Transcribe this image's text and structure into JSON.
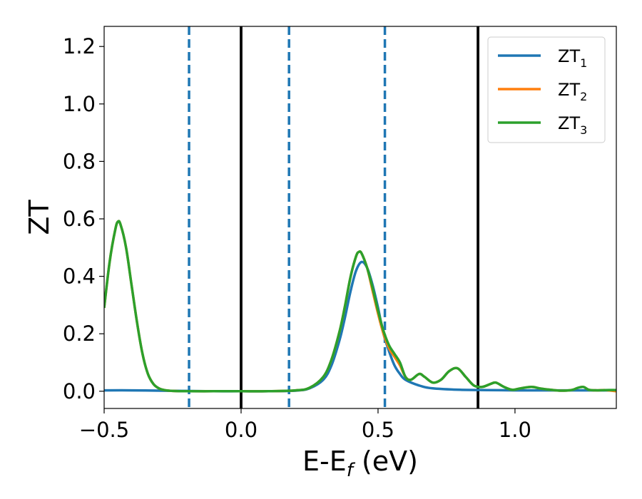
{
  "chart_data": {
    "type": "line",
    "xlabel": {
      "main": "E-E",
      "sub": "f",
      "tail": " (eV)"
    },
    "ylabel": "ZT",
    "xlim": [
      -0.5,
      1.37
    ],
    "ylim": [
      -0.06,
      1.27
    ],
    "xticks": [
      {
        "value": -0.5,
        "label": "−0.5"
      },
      {
        "value": 0.0,
        "label": "0.0"
      },
      {
        "value": 0.5,
        "label": "0.5"
      },
      {
        "value": 1.0,
        "label": "1.0"
      }
    ],
    "yticks": [
      {
        "value": 0.0,
        "label": "0.0"
      },
      {
        "value": 0.2,
        "label": "0.2"
      },
      {
        "value": 0.4,
        "label": "0.4"
      },
      {
        "value": 0.6,
        "label": "0.6"
      },
      {
        "value": 0.8,
        "label": "0.8"
      },
      {
        "value": 1.0,
        "label": "1.0"
      },
      {
        "value": 1.2,
        "label": "1.2"
      }
    ],
    "grid": false,
    "legend_position": "top-right",
    "vlines": [
      {
        "x": -0.19,
        "style": "dashed",
        "color": "#1f77b4"
      },
      {
        "x": 0.0,
        "style": "solid",
        "color": "#000000"
      },
      {
        "x": 0.175,
        "style": "dashed",
        "color": "#1f77b4"
      },
      {
        "x": 0.525,
        "style": "dashed",
        "color": "#1f77b4"
      },
      {
        "x": 0.865,
        "style": "solid",
        "color": "#000000"
      }
    ],
    "series": [
      {
        "name": "ZT",
        "sub": "1",
        "color": "#1f77b4",
        "x": [
          -0.5,
          -0.4,
          -0.3,
          -0.2,
          -0.1,
          0.0,
          0.1,
          0.2,
          0.25,
          0.3,
          0.33,
          0.36,
          0.38,
          0.4,
          0.42,
          0.44,
          0.46,
          0.48,
          0.5,
          0.52,
          0.54,
          0.56,
          0.58,
          0.6,
          0.65,
          0.7,
          0.8,
          0.9,
          1.0,
          1.1,
          1.2,
          1.3,
          1.37
        ],
        "y": [
          0.003,
          0.003,
          0.002,
          0.001,
          0.0,
          0.0,
          0.0,
          0.002,
          0.01,
          0.04,
          0.09,
          0.18,
          0.26,
          0.35,
          0.42,
          0.45,
          0.43,
          0.37,
          0.29,
          0.2,
          0.14,
          0.09,
          0.06,
          0.04,
          0.02,
          0.01,
          0.005,
          0.004,
          0.003,
          0.003,
          0.003,
          0.003,
          0.003
        ]
      },
      {
        "name": "ZT",
        "sub": "2",
        "color": "#ff7f0e",
        "x": [
          -0.5,
          -0.48,
          -0.46,
          -0.45,
          -0.44,
          -0.42,
          -0.4,
          -0.38,
          -0.36,
          -0.34,
          -0.32,
          -0.3,
          -0.28,
          -0.25,
          -0.2,
          -0.1,
          0.0,
          0.1,
          0.2,
          0.25,
          0.3,
          0.33,
          0.36,
          0.38,
          0.4,
          0.42,
          0.43,
          0.44,
          0.46,
          0.48,
          0.5,
          0.52,
          0.54,
          0.56,
          0.58,
          0.6,
          0.62,
          0.65,
          0.67,
          0.7,
          0.73,
          0.76,
          0.79,
          0.82,
          0.85,
          0.88,
          0.91,
          0.93,
          0.96,
          0.99,
          1.02,
          1.06,
          1.09,
          1.12,
          1.15,
          1.18,
          1.21,
          1.23,
          1.25,
          1.27,
          1.3,
          1.33,
          1.37
        ],
        "y": [
          0.29,
          0.45,
          0.56,
          0.59,
          0.58,
          0.5,
          0.37,
          0.24,
          0.13,
          0.06,
          0.025,
          0.01,
          0.004,
          0.001,
          0.0,
          0.0,
          0.0,
          0.0,
          0.003,
          0.012,
          0.05,
          0.11,
          0.21,
          0.3,
          0.4,
          0.47,
          0.485,
          0.48,
          0.43,
          0.35,
          0.27,
          0.2,
          0.15,
          0.12,
          0.09,
          0.05,
          0.04,
          0.06,
          0.05,
          0.03,
          0.04,
          0.07,
          0.08,
          0.05,
          0.02,
          0.015,
          0.025,
          0.03,
          0.015,
          0.005,
          0.01,
          0.015,
          0.01,
          0.006,
          0.003,
          0.002,
          0.005,
          0.012,
          0.015,
          0.005,
          0.003,
          0.004,
          0.0
        ]
      },
      {
        "name": "ZT",
        "sub": "3",
        "color": "#2ca02c",
        "x": [
          -0.5,
          -0.48,
          -0.46,
          -0.45,
          -0.44,
          -0.42,
          -0.4,
          -0.38,
          -0.36,
          -0.34,
          -0.32,
          -0.3,
          -0.28,
          -0.25,
          -0.2,
          -0.1,
          0.0,
          0.1,
          0.2,
          0.25,
          0.3,
          0.33,
          0.36,
          0.38,
          0.4,
          0.42,
          0.43,
          0.44,
          0.46,
          0.48,
          0.5,
          0.52,
          0.54,
          0.56,
          0.58,
          0.6,
          0.62,
          0.65,
          0.67,
          0.7,
          0.73,
          0.76,
          0.79,
          0.82,
          0.85,
          0.88,
          0.91,
          0.93,
          0.96,
          0.99,
          1.02,
          1.06,
          1.09,
          1.12,
          1.15,
          1.18,
          1.21,
          1.23,
          1.25,
          1.27,
          1.3,
          1.33,
          1.37
        ],
        "y": [
          0.29,
          0.45,
          0.56,
          0.59,
          0.58,
          0.5,
          0.37,
          0.24,
          0.13,
          0.06,
          0.025,
          0.01,
          0.004,
          0.001,
          0.0,
          0.0,
          0.0,
          0.0,
          0.003,
          0.012,
          0.05,
          0.11,
          0.21,
          0.3,
          0.4,
          0.47,
          0.485,
          0.48,
          0.43,
          0.36,
          0.28,
          0.21,
          0.16,
          0.13,
          0.1,
          0.05,
          0.04,
          0.06,
          0.05,
          0.03,
          0.04,
          0.07,
          0.08,
          0.05,
          0.02,
          0.015,
          0.025,
          0.03,
          0.015,
          0.005,
          0.01,
          0.015,
          0.01,
          0.006,
          0.003,
          0.002,
          0.005,
          0.012,
          0.015,
          0.005,
          0.003,
          0.004,
          0.004
        ]
      }
    ]
  }
}
